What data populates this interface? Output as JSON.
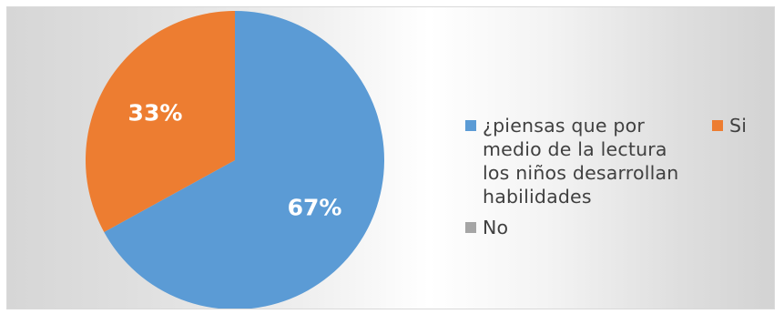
{
  "chart_data": {
    "type": "pie",
    "title": "",
    "start_angle_deg": 0,
    "direction": "clockwise",
    "slices": [
      {
        "label": "¿piensas que por medio de la lectura los niños desarrollan habilidades",
        "value": 67,
        "display": "67%",
        "color": "#5b9bd5"
      },
      {
        "label": "Si",
        "value": 33,
        "display": "33%",
        "color": "#ed7d31"
      },
      {
        "label": "No",
        "value": 0,
        "display": "",
        "color": "#a5a5a5"
      }
    ],
    "legend": {
      "placement": "right",
      "entries": [
        {
          "lines": [
            "¿piensas que por",
            "medio de la lectura",
            "los niños desarrollan",
            "habilidades"
          ],
          "color": "#5b9bd5"
        },
        {
          "lines": [
            "Si"
          ],
          "color": "#ed7d31"
        },
        {
          "lines": [
            "No"
          ],
          "color": "#a5a5a5"
        }
      ]
    }
  }
}
